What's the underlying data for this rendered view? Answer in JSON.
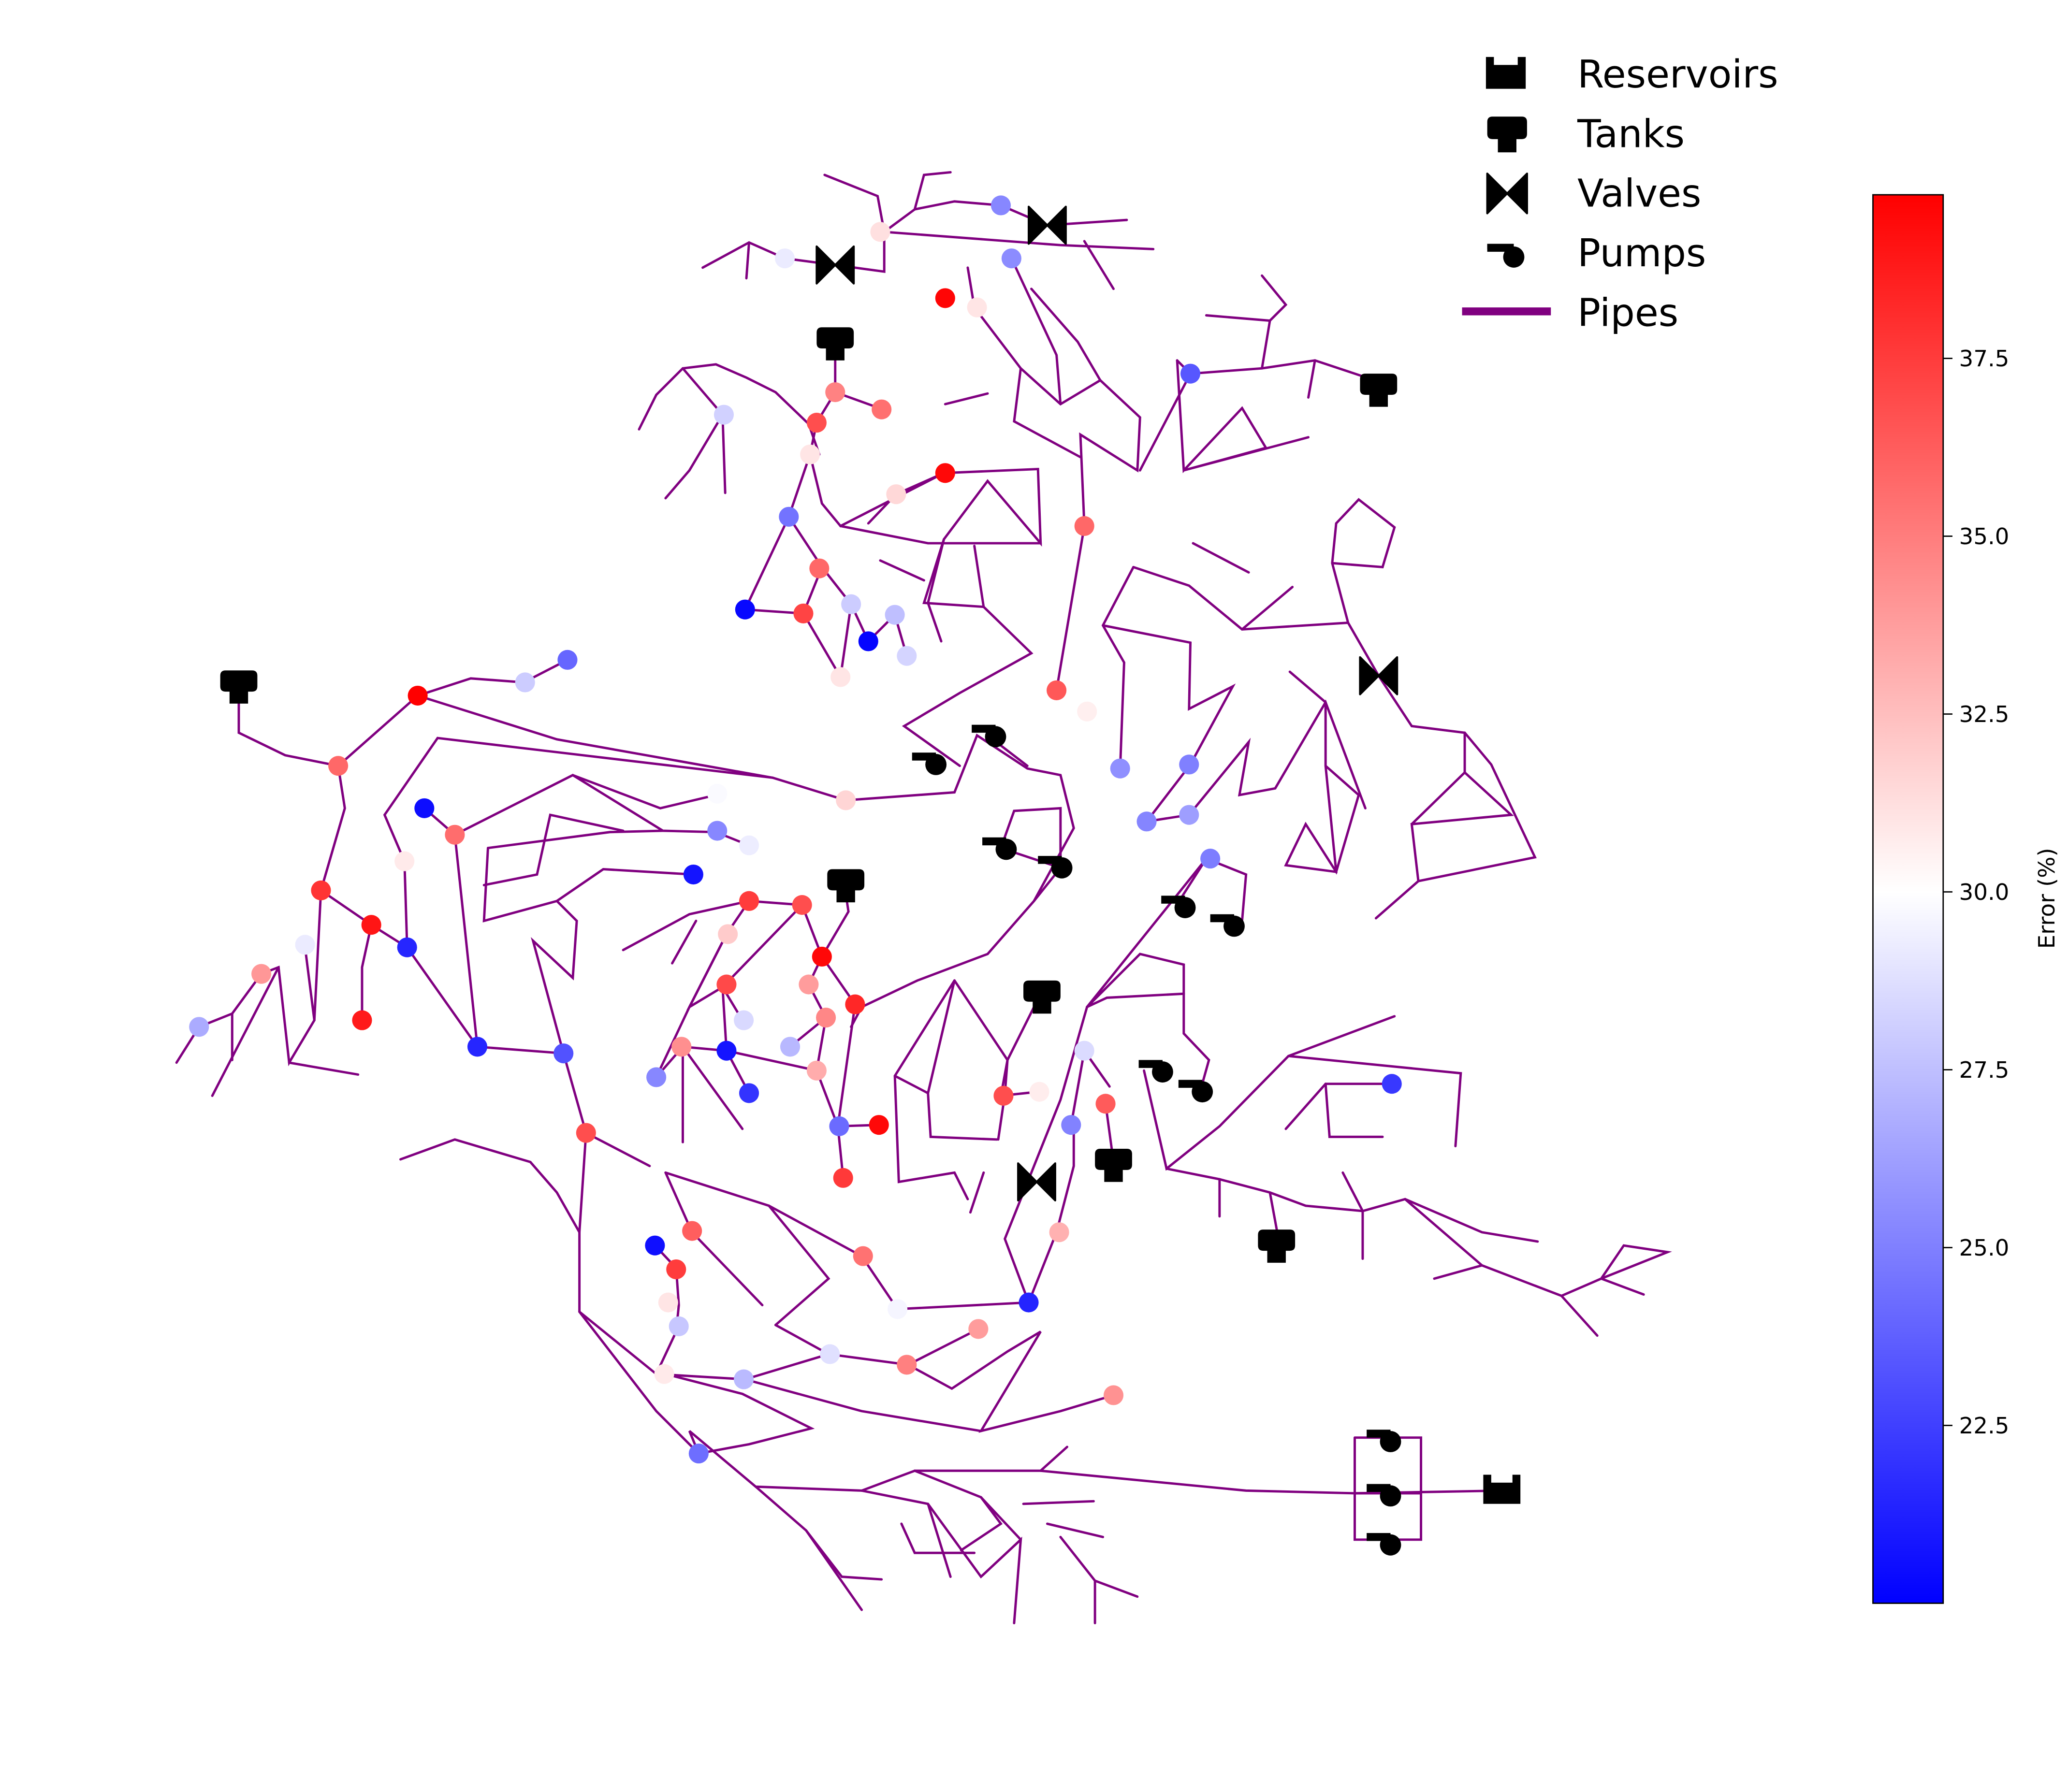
{
  "legend": {
    "items": [
      {
        "key": "reservoir",
        "label": "Reservoirs"
      },
      {
        "key": "tank",
        "label": "Tanks"
      },
      {
        "key": "valve",
        "label": "Valves"
      },
      {
        "key": "pump",
        "label": "Pumps"
      },
      {
        "key": "pipe",
        "label": "Pipes"
      }
    ]
  },
  "colorbar": {
    "label": "Error (%)",
    "min": 20.0,
    "max": 39.8,
    "center": 30.0,
    "ticks": [
      "22.5",
      "25.0",
      "27.5",
      "30.0",
      "32.5",
      "35.0",
      "37.5"
    ],
    "colormap": [
      "#0000ff",
      "#ffffff",
      "#ff0000"
    ]
  },
  "colors": {
    "pipe": "#800080",
    "component": "#000000"
  }
}
